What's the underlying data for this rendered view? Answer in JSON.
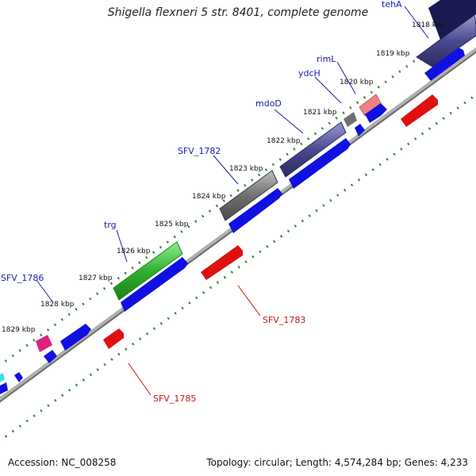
{
  "title": "Shigella flexneri 5 str. 8401, complete genome",
  "accession": "Accession: NC_008258",
  "summary": "Topology: circular; Length: 4,574,284 bp; Genes: 4,233",
  "ticks": [
    "1818 kbp",
    "1819 kbp",
    "1820 kbp",
    "1821 kbp",
    "1822 kbp",
    "1823 kbp",
    "1824 kbp",
    "1825 kbp",
    "1826 kbp",
    "1827 kbp",
    "1828 kbp",
    "1829 kbp"
  ],
  "gene_labels_top": [
    "tehA",
    "rimL",
    "ydcH",
    "mdoD",
    "SFV_1782",
    "trg",
    "SFV_1786"
  ],
  "gene_labels_bottom": [
    "SFV_1783",
    "SFV_1785"
  ],
  "colors": {
    "backbone": "#9a9a9a",
    "tick_dot": "#2a8a2a",
    "forward_cds": "#1010e0",
    "reverse_cds": "#e01010",
    "cog_purple": "#4a4a90",
    "cog_gray": "#707070",
    "cog_green": "#30b030",
    "cog_pink": "#f08080",
    "cog_magenta": "#e02080",
    "label_blue": "#1a1ab0",
    "label_red": "#d01010"
  }
}
